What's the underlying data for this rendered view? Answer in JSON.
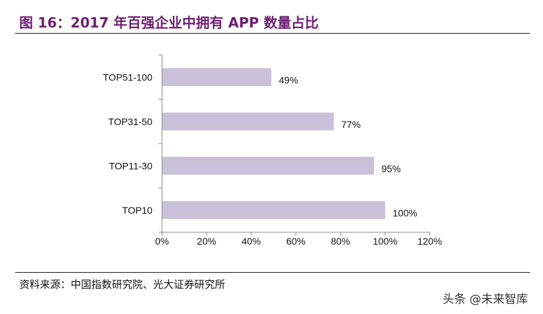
{
  "header": {
    "title": "图 16：2017 年百强企业中拥有 APP 数量占比"
  },
  "footer": {
    "source": "资料来源：中国指数研究院、光大证券研究所",
    "watermark": "头条 @未来智库"
  },
  "chart_data": {
    "type": "bar",
    "orientation": "horizontal",
    "title": "",
    "xlabel": "",
    "ylabel": "",
    "categories": [
      "TOP51-100",
      "TOP31-50",
      "TOP11-30",
      "TOP10"
    ],
    "values": [
      49,
      77,
      95,
      100
    ],
    "value_labels": [
      "49%",
      "77%",
      "95%",
      "100%"
    ],
    "xlim": [
      0,
      120
    ],
    "x_ticks": [
      0,
      20,
      40,
      60,
      80,
      100,
      120
    ],
    "x_tick_labels": [
      "0%",
      "20%",
      "40%",
      "60%",
      "80%",
      "100%",
      "120%"
    ],
    "grid": false,
    "legend": "none",
    "bar_color": "#cac0d9",
    "axis_color": "#888888"
  }
}
